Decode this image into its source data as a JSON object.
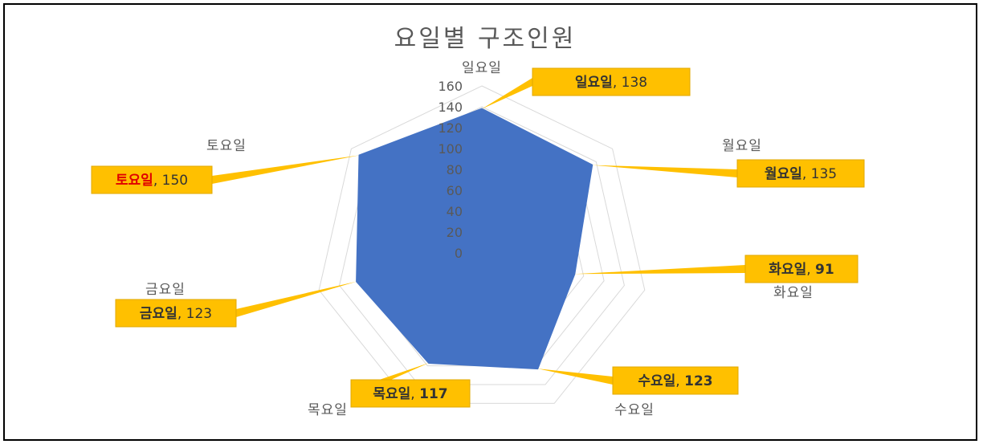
{
  "chart_data": {
    "type": "radar",
    "title": "요일별 구조인원",
    "categories": [
      "일요일",
      "월요일",
      "화요일",
      "수요일",
      "목요일",
      "금요일",
      "토요일"
    ],
    "values": [
      138,
      135,
      91,
      123,
      117,
      123,
      150
    ],
    "ylim": [
      0,
      160
    ],
    "ticks": [
      "0",
      "20",
      "40",
      "60",
      "80",
      "100",
      "120",
      "140",
      "160"
    ],
    "grid": true,
    "series_color": "#4472C4",
    "data_labels": [
      {
        "category": "일요일",
        "value": "138",
        "bold_value": false,
        "red_category": false
      },
      {
        "category": "월요일",
        "value": "135",
        "bold_value": false,
        "red_category": false
      },
      {
        "category": "화요일",
        "value": "91",
        "bold_value": true,
        "red_category": false
      },
      {
        "category": "수요일",
        "value": "123",
        "bold_value": true,
        "red_category": false
      },
      {
        "category": "목요일",
        "value": "117",
        "bold_value": true,
        "red_category": false
      },
      {
        "category": "금요일",
        "value": "123",
        "bold_value": false,
        "red_category": false
      },
      {
        "category": "토요일",
        "value": "150",
        "bold_value": false,
        "red_category": true
      }
    ],
    "label_bg_color": "#FFC000",
    "highlight_color": "#E00000"
  }
}
